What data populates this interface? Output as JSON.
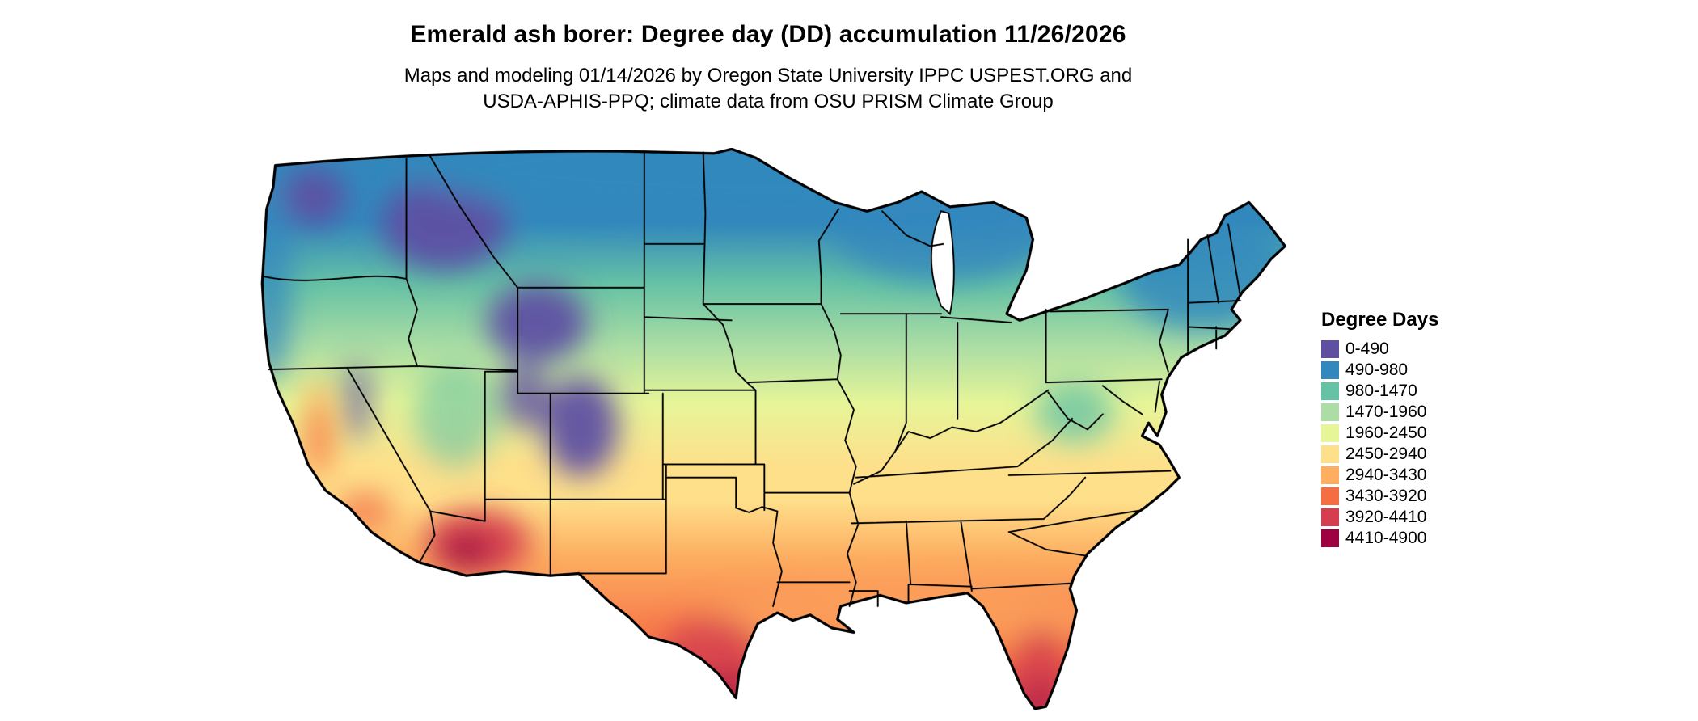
{
  "header": {
    "title": "Emerald ash borer: Degree day (DD) accumulation 11/26/2026",
    "subtitle_line1": "Maps and modeling 01/14/2026 by Oregon State University IPPC USPEST.ORG and",
    "subtitle_line2": "USDA-APHIS-PPQ; climate data from OSU PRISM Climate Group"
  },
  "legend": {
    "title": "Degree Days",
    "items": [
      {
        "label": "0-490",
        "color": "#5e4fa2"
      },
      {
        "label": "490-980",
        "color": "#3288bd"
      },
      {
        "label": "980-1470",
        "color": "#66c2a5"
      },
      {
        "label": "1470-1960",
        "color": "#abdda4"
      },
      {
        "label": "1960-2450",
        "color": "#e6f598"
      },
      {
        "label": "2450-2940",
        "color": "#fee08b"
      },
      {
        "label": "2940-3430",
        "color": "#fdae61"
      },
      {
        "label": "3430-3920",
        "color": "#f46d43"
      },
      {
        "label": "3920-4410",
        "color": "#d53e4f"
      },
      {
        "label": "4410-4900",
        "color": "#9e0142"
      }
    ]
  },
  "map": {
    "type": "choropleth-map",
    "region": "Contiguous United States with state boundaries",
    "variable": "Emerald ash borer degree day (DD) accumulation",
    "pattern": "Coolest values (purple/blue) across the northern tier, Cascades and Rocky Mountains; warmest values (orange/red) in the desert Southwest, southern Texas, Gulf Coast and Florida"
  }
}
